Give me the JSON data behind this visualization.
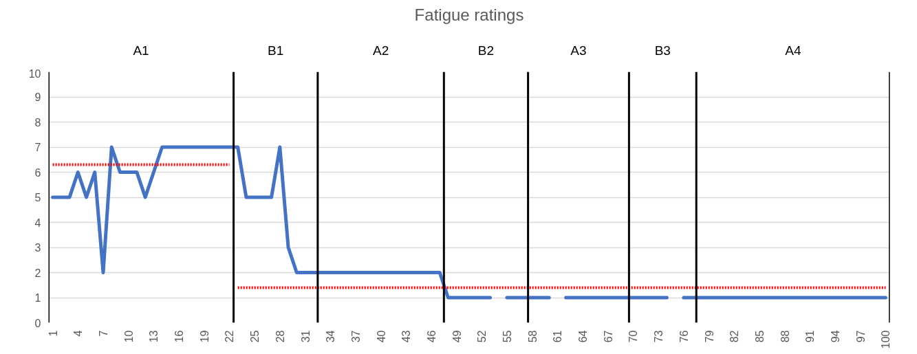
{
  "chart_data": {
    "type": "line",
    "title": "Fatigue ratings",
    "annotations": [
      "A1",
      "B1",
      "A2",
      "B2",
      "A3",
      "B3",
      "A4"
    ],
    "x": [
      1,
      2,
      3,
      4,
      5,
      6,
      7,
      8,
      9,
      10,
      11,
      12,
      13,
      14,
      15,
      16,
      17,
      18,
      19,
      20,
      21,
      22,
      23,
      24,
      25,
      26,
      27,
      28,
      29,
      30,
      31,
      32,
      33,
      34,
      35,
      36,
      37,
      38,
      39,
      40,
      41,
      42,
      43,
      44,
      45,
      46,
      47,
      48,
      49,
      50,
      51,
      52,
      53,
      54,
      55,
      56,
      57,
      58,
      59,
      60,
      61,
      62,
      63,
      64,
      65,
      66,
      67,
      68,
      69,
      70,
      71,
      72,
      73,
      74,
      75,
      76,
      77,
      78,
      79,
      80,
      81,
      82,
      83,
      84,
      85,
      86,
      87,
      88,
      89,
      90,
      91,
      92,
      93,
      94,
      95,
      96,
      97,
      98,
      99,
      100
    ],
    "series": [
      {
        "color": "#4472c4",
        "line_style": "solid",
        "values": [
          5,
          5,
          5,
          6,
          5,
          6,
          2,
          7,
          6,
          6,
          6,
          5,
          6,
          7,
          7,
          7,
          7,
          7,
          7,
          7,
          7,
          7,
          7,
          5,
          5,
          5,
          5,
          7,
          3,
          2,
          2,
          2,
          2,
          2,
          2,
          2,
          2,
          2,
          2,
          2,
          2,
          2,
          2,
          2,
          2,
          2,
          2,
          1,
          1,
          1,
          1,
          1,
          1,
          null,
          1,
          1,
          1,
          1,
          1,
          1,
          null,
          1,
          1,
          1,
          1,
          1,
          1,
          1,
          1,
          1,
          1,
          1,
          1,
          1,
          null,
          1,
          1,
          1,
          1,
          1,
          1,
          1,
          1,
          1,
          1,
          1,
          1,
          1,
          1,
          1,
          1,
          1,
          1,
          1,
          1,
          1,
          1,
          1,
          1,
          1
        ]
      },
      {
        "type": "line",
        "color": "#ff0000",
        "line_style": "dotted",
        "x": [
          1,
          22
        ],
        "values": [
          6.3,
          6.3
        ]
      },
      {
        "type": "line",
        "color": "#ff0000",
        "line_style": "dotted",
        "x": [
          23,
          100
        ],
        "values": [
          1.4,
          1.4
        ]
      }
    ],
    "ref_lines": [
      {
        "axis": "x",
        "value": 0.5,
        "color": "#000000"
      },
      {
        "axis": "x",
        "value": 22.5,
        "color": "#000000"
      },
      {
        "axis": "x",
        "value": 32.5,
        "color": "#000000"
      },
      {
        "axis": "x",
        "value": 47.5,
        "color": "#000000"
      },
      {
        "axis": "x",
        "value": 57.5,
        "color": "#000000"
      },
      {
        "axis": "x",
        "value": 69.5,
        "color": "#000000"
      },
      {
        "axis": "x",
        "value": 77.5,
        "color": "#000000"
      },
      {
        "axis": "x",
        "value": 100.5,
        "color": "#000000"
      }
    ],
    "xlim": [
      0.5,
      100.5
    ],
    "xticks": [
      1,
      4,
      7,
      10,
      13,
      16,
      19,
      22,
      25,
      28,
      31,
      34,
      37,
      40,
      43,
      46,
      49,
      52,
      55,
      58,
      61,
      64,
      67,
      70,
      73,
      76,
      79,
      82,
      85,
      88,
      91,
      94,
      97,
      100
    ],
    "ylim": [
      0,
      10
    ],
    "yticks": [
      0,
      1,
      2,
      3,
      4,
      5,
      6,
      7,
      8,
      9,
      10
    ],
    "grid": "y"
  }
}
